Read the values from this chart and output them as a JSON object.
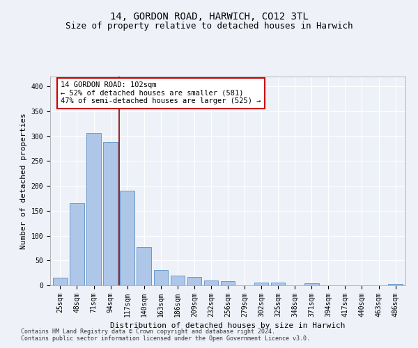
{
  "title_line1": "14, GORDON ROAD, HARWICH, CO12 3TL",
  "title_line2": "Size of property relative to detached houses in Harwich",
  "xlabel": "Distribution of detached houses by size in Harwich",
  "ylabel": "Number of detached properties",
  "categories": [
    "25sqm",
    "48sqm",
    "71sqm",
    "94sqm",
    "117sqm",
    "140sqm",
    "163sqm",
    "186sqm",
    "209sqm",
    "232sqm",
    "256sqm",
    "279sqm",
    "302sqm",
    "325sqm",
    "348sqm",
    "371sqm",
    "394sqm",
    "417sqm",
    "440sqm",
    "463sqm",
    "486sqm"
  ],
  "values": [
    15,
    165,
    307,
    288,
    190,
    77,
    31,
    19,
    17,
    10,
    9,
    0,
    5,
    5,
    0,
    4,
    0,
    0,
    0,
    0,
    3
  ],
  "bar_color": "#aec6e8",
  "bar_edge_color": "#5a8fc4",
  "vline_x": 3.5,
  "vline_color": "#8b0000",
  "annotation_text": "14 GORDON ROAD: 102sqm\n← 52% of detached houses are smaller (581)\n47% of semi-detached houses are larger (525) →",
  "annotation_box_color": "#ffffff",
  "annotation_box_edge": "#cc0000",
  "ylim": [
    0,
    420
  ],
  "yticks": [
    0,
    50,
    100,
    150,
    200,
    250,
    300,
    350,
    400
  ],
  "footer_line1": "Contains HM Land Registry data © Crown copyright and database right 2024.",
  "footer_line2": "Contains public sector information licensed under the Open Government Licence v3.0.",
  "background_color": "#eef2f8",
  "grid_color": "#ffffff",
  "title_fontsize": 10,
  "subtitle_fontsize": 9,
  "axis_label_fontsize": 8,
  "tick_fontsize": 7,
  "annotation_fontsize": 7.5,
  "footer_fontsize": 6
}
